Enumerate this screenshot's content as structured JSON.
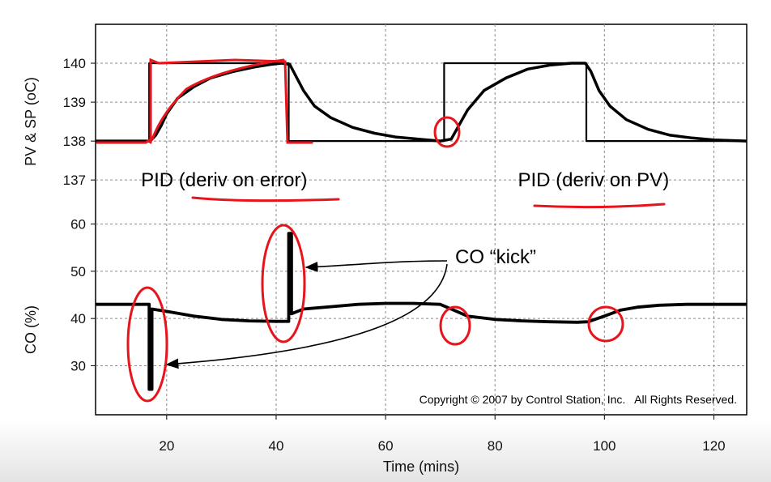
{
  "chart_data": {
    "type": "line",
    "xlabel": "Time (mins)",
    "xlim": [
      7,
      126
    ],
    "x_ticks": [
      20,
      40,
      60,
      80,
      100,
      120
    ],
    "upper": {
      "ylabel": "PV & SP (oC)",
      "ylim": [
        136.4,
        141.0
      ],
      "y_ticks": [
        137,
        138,
        139,
        140
      ],
      "series": [
        {
          "key": "sp",
          "color": "#000000",
          "x": [
            7,
            16.8,
            16.8,
            42.3,
            42.3,
            70.7,
            70.7,
            96.7,
            96.7,
            126
          ],
          "y": [
            138,
            138,
            140,
            140,
            138,
            138,
            140,
            140,
            138,
            138
          ]
        },
        {
          "key": "pv",
          "color": "#000000",
          "x": [
            7,
            12,
            17,
            18,
            19,
            20,
            22,
            25,
            28,
            32,
            36,
            39,
            41,
            42.5,
            43.5,
            45,
            47,
            50,
            54,
            58,
            62,
            66,
            70,
            72,
            73,
            75,
            78,
            82,
            86,
            90,
            94,
            96.5,
            97.5,
            99,
            101,
            104,
            108,
            112,
            116,
            120,
            126
          ],
          "y": [
            138.0,
            138.0,
            138.0,
            138.15,
            138.4,
            138.7,
            139.1,
            139.4,
            139.62,
            139.78,
            139.9,
            139.97,
            140.0,
            139.97,
            139.7,
            139.3,
            138.9,
            138.6,
            138.35,
            138.2,
            138.1,
            138.05,
            138.0,
            138.05,
            138.3,
            138.8,
            139.3,
            139.62,
            139.85,
            139.95,
            140.0,
            140.0,
            139.8,
            139.3,
            138.9,
            138.55,
            138.3,
            138.15,
            138.08,
            138.03,
            138.0
          ]
        }
      ],
      "labels": [
        {
          "text": "PID (deriv on error)",
          "x": 30.5,
          "y": 137
        },
        {
          "text": "PID (deriv on PV)",
          "x": 98,
          "y": 137
        }
      ]
    },
    "lower": {
      "ylabel": "CO (%)",
      "ylim": [
        21.5,
        62.5
      ],
      "y_ticks": [
        30,
        40,
        50,
        60
      ],
      "series": [
        {
          "key": "co",
          "color": "#000000",
          "x": [
            7,
            12,
            16.8,
            16.8,
            17.3,
            17.3,
            20,
            25,
            30,
            35,
            40,
            42.3,
            42.3,
            42.8,
            42.8,
            45,
            50,
            55,
            60,
            65,
            70,
            72,
            75,
            80,
            85,
            90,
            95,
            97,
            100,
            103,
            106,
            110,
            115,
            120,
            126
          ],
          "y": [
            43,
            43,
            43,
            25,
            25,
            42,
            41.5,
            40.5,
            39.8,
            39.5,
            39.4,
            39.4,
            58,
            58,
            41,
            42,
            42.5,
            43,
            43.2,
            43.2,
            43,
            42,
            40.5,
            39.8,
            39.5,
            39.3,
            39.2,
            39.3,
            40.5,
            41.8,
            42.4,
            42.8,
            43,
            43,
            43
          ]
        }
      ]
    },
    "annotation": {
      "text": "CO “kick”"
    },
    "copyright": "Copyright © 2007 by Control Station, Inc.   All Rights Reserved."
  },
  "colors": {
    "plot_line": "#000000",
    "markup": "#e8141c",
    "grid": "#8a8a8a"
  }
}
